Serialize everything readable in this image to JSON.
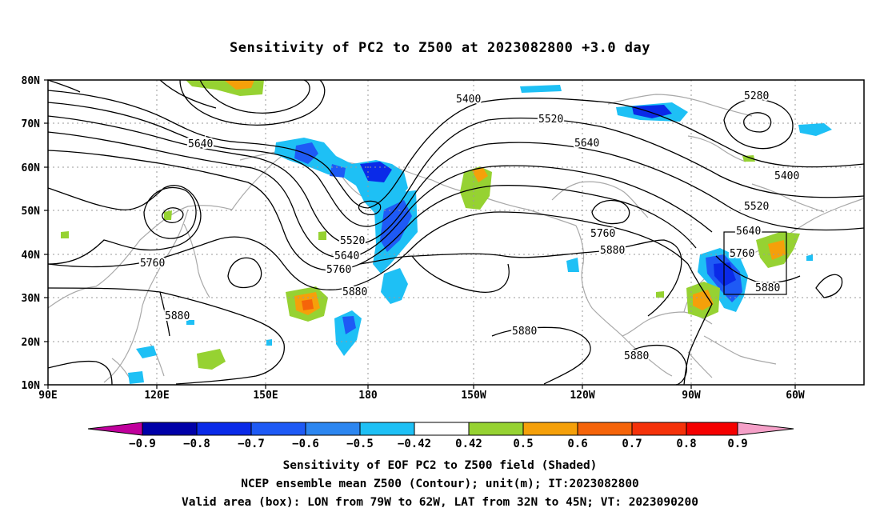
{
  "title": "Sensitivity of PC2 to Z500 at 2023082800 +3.0 day",
  "axes": {
    "lat_ticks": [
      "80N",
      "70N",
      "60N",
      "50N",
      "40N",
      "30N",
      "20N",
      "10N"
    ],
    "lon_ticks": [
      "90E",
      "120E",
      "150E",
      "180",
      "150W",
      "120W",
      "90W",
      "60W"
    ]
  },
  "contour_labels": [
    "5400",
    "5280",
    "5520",
    "5640",
    "5400",
    "5520",
    "5640",
    "5760",
    "5520",
    "5640",
    "5760",
    "5880",
    "5760",
    "5880",
    "5880",
    "5880",
    "5880",
    "5640",
    "5760",
    "5880"
  ],
  "colorbar": {
    "labels": [
      "−0.9",
      "−0.8",
      "−0.7",
      "−0.6",
      "−0.5",
      "−0.42",
      "0.42",
      "0.5",
      "0.6",
      "0.7",
      "0.8",
      "0.9"
    ],
    "colors": [
      "#c0009c",
      "#0000a8",
      "#0a2ae8",
      "#1e5af5",
      "#2c86f0",
      "#1ec0f5",
      "#ffffff",
      "#96d232",
      "#f5a00a",
      "#f5640a",
      "#f5320a",
      "#f50000",
      "#f5a0c8"
    ]
  },
  "captions": {
    "line1": "Sensitivity of EOF PC2 to Z500 field (Shaded)",
    "line2": "NCEP ensemble mean Z500 (Contour); unit(m); IT:2023082800",
    "line3": "Valid area (box): LON from 79W to 62W, LAT from 32N to 45N; VT: 2023090200"
  }
}
